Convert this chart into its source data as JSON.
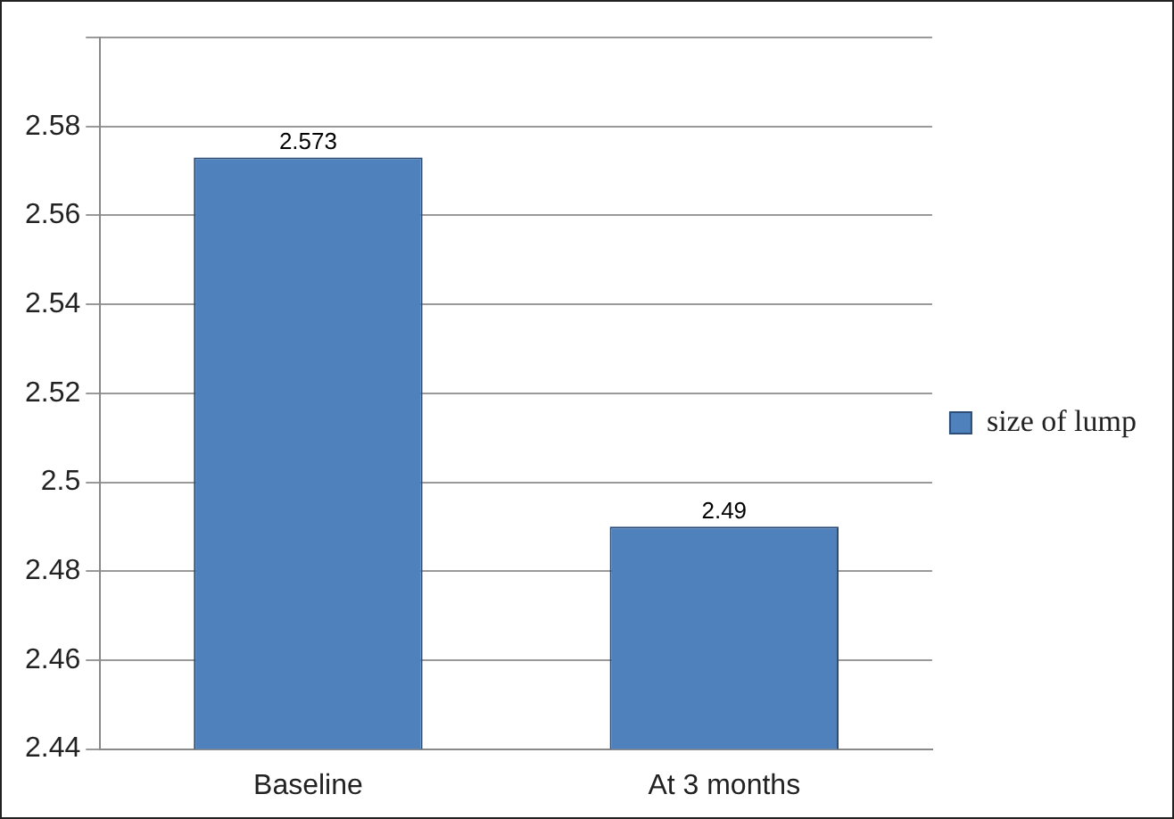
{
  "chart_data": {
    "type": "bar",
    "categories": [
      "Baseline",
      "At 3 months"
    ],
    "series": [
      {
        "name": "size of lump",
        "color": "#4f81bd",
        "values": [
          2.573,
          2.49
        ]
      }
    ],
    "ylim": [
      2.44,
      2.6
    ],
    "yticks": [
      2.44,
      2.46,
      2.48,
      2.5,
      2.52,
      2.54,
      2.56,
      2.58,
      {
        "value": 2.6,
        "label": null
      }
    ],
    "grid": "y",
    "legend": "right",
    "data_labels": true
  }
}
